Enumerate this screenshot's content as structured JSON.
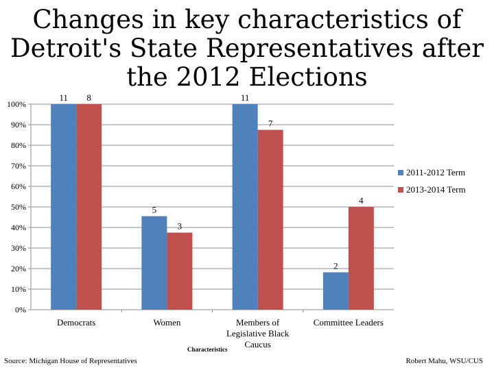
{
  "slide": {
    "title": "Changes in key characteristics of Detroit's State Representatives after the 2012 Elections",
    "source": "Source: Michigan House of Representatives",
    "author": "Robert Mahu, WSU/CUS"
  },
  "chart_data": {
    "type": "bar",
    "title": "Changes in key characteristics of Detroit's State Representatives after the 2012 Elections",
    "xlabel": "Characteristics",
    "ylabel": "",
    "ylim": [
      0,
      100
    ],
    "y_unit": "%",
    "y_ticks": [
      "0%",
      "10%",
      "20%",
      "30%",
      "40%",
      "50%",
      "60%",
      "70%",
      "80%",
      "90%",
      "100%"
    ],
    "categories": [
      "Democrats",
      "Women",
      "Members of Legislative Black Caucus",
      "Committee Leaders"
    ],
    "category_label_lines": [
      [
        "Democrats"
      ],
      [
        "Women"
      ],
      [
        "Members of",
        "Legislative Black",
        "Caucus"
      ],
      [
        "Committee Leaders"
      ]
    ],
    "series": [
      {
        "name": "2011-2012 Term",
        "color": "#4f81bd",
        "values": [
          100,
          45.5,
          100,
          18.2
        ],
        "labels": [
          "11",
          "5",
          "11",
          "2"
        ]
      },
      {
        "name": "2013-2014 Term",
        "color": "#c0504d",
        "values": [
          100,
          37.5,
          87.5,
          50
        ],
        "labels": [
          "8",
          "3",
          "7",
          "4"
        ]
      }
    ],
    "grid": true,
    "legend": "right"
  }
}
